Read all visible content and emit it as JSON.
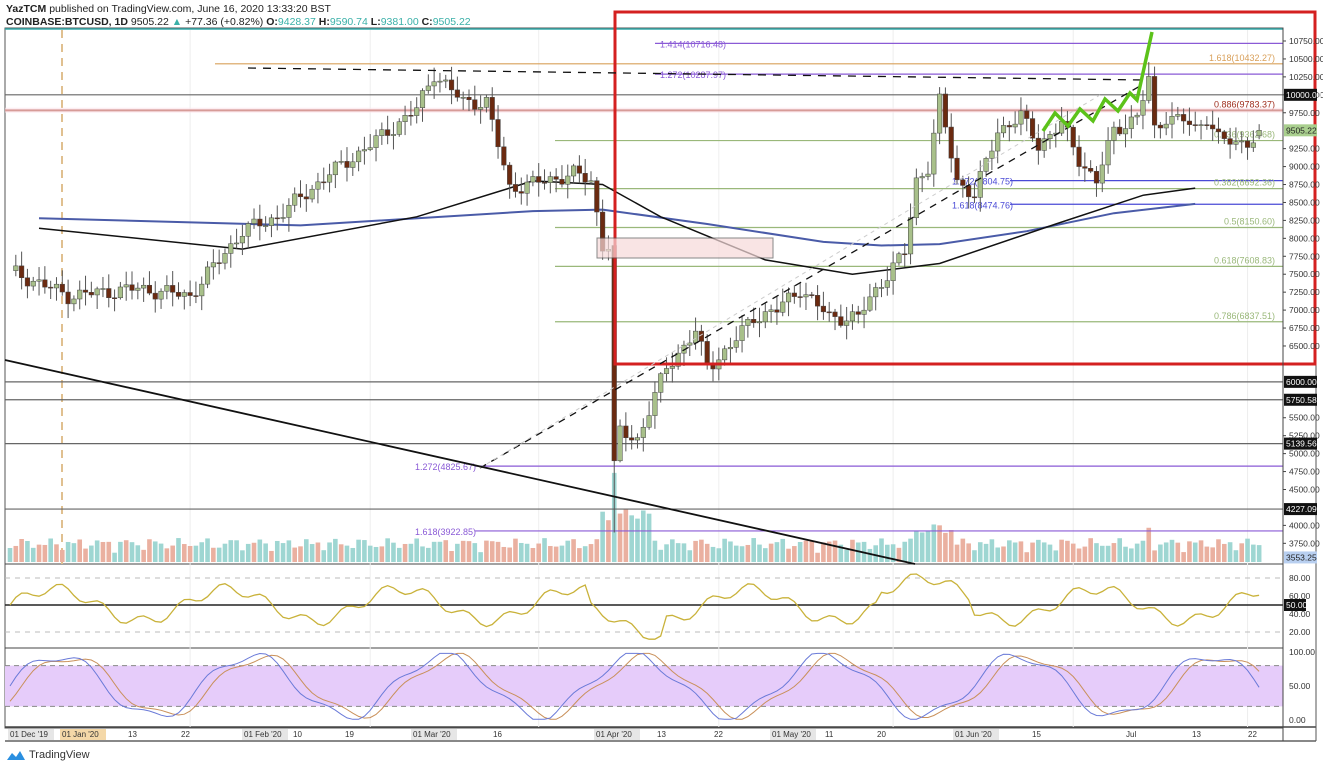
{
  "header": {
    "publisher": "YazTCM",
    "published_text": "published on TradingView.com, June 16, 2020 13:33:20 BST",
    "symbol": "COINBASE:BTCUSD, 1D",
    "last": "9505.22",
    "change": "+77.36 (+0.82%)",
    "open_label": "O:",
    "open": "9428.37",
    "high_label": "H:",
    "high": "9590.74",
    "low_label": "L:",
    "low": "9381.00",
    "close_label": "C:",
    "close": "9505.22"
  },
  "footer": {
    "brand": "TradingView"
  },
  "colors": {
    "up_candle": "#a8c08a",
    "down_candle": "#6b2a10",
    "frame_red": "#d42020",
    "fib_green": "#8aa86a",
    "fib_purple": "#8a6ad6",
    "fib_orange": "#d9a05a",
    "ma_blue": "#4a5ba8",
    "ma_black": "#111111",
    "rsi": "#c9b23a",
    "stoch_k": "#6a7ad8",
    "stoch_d": "#c9905a",
    "stoch_band": "#e6ccfa",
    "projection": "#5cc21a"
  },
  "chart_data": {
    "type": "candlestick",
    "title": "COINBASE:BTCUSD, 1D",
    "xlabel": "",
    "ylabel": "Price (USD)",
    "ylim": [
      3400,
      10950
    ],
    "price_ticks": [
      "10750.00",
      "10500.00",
      "10250.00",
      "10000.00",
      "9750.00",
      "9250.00",
      "9000.00",
      "8750.00",
      "8500.00",
      "8250.00",
      "8000.00",
      "7750.00",
      "7500.00",
      "7250.00",
      "7000.00",
      "6750.00",
      "6500.00",
      "5500.00",
      "5250.00",
      "5000.00",
      "4750.00",
      "4500.00",
      "4000.00",
      "3750.00"
    ],
    "highlighted_price_labels": [
      {
        "value": "10000.00",
        "style": "black"
      },
      {
        "value": "9505.22",
        "style": "green"
      },
      {
        "value": "6000.00",
        "style": "black"
      },
      {
        "value": "5750.58",
        "style": "black"
      },
      {
        "value": "5139.56",
        "style": "black"
      },
      {
        "value": "4227.09",
        "style": "black"
      },
      {
        "value": "3553.25",
        "style": "blue"
      }
    ],
    "time_ticks": [
      "01 Dec '19",
      "01 Jan '20",
      "13",
      "22",
      "01 Feb '20",
      "10",
      "19",
      "01 Mar '20",
      "16",
      "01 Apr '20",
      "13",
      "22",
      "01 May '20",
      "11",
      "20",
      "01 Jun '20",
      "15",
      "Jul",
      "13",
      "22"
    ],
    "fib_levels": [
      {
        "label": "1.414(10716.48)",
        "price": 10716.48,
        "color": "purple"
      },
      {
        "label": "1.618(10432.27)",
        "price": 10432.27,
        "color": "orange"
      },
      {
        "label": "1.272(10287.97)",
        "price": 10287.97,
        "color": "purple"
      },
      {
        "label": "0.886(9783.37)",
        "price": 9783.37,
        "color": "red"
      },
      {
        "label": "0.236(9362.68)",
        "price": 9362.68,
        "color": "green"
      },
      {
        "label": "1.272(8804.75)",
        "price": 8804.75,
        "color": "blue"
      },
      {
        "label": "0.382(8692.36)",
        "price": 8692.36,
        "color": "green"
      },
      {
        "label": "1.618(8474.76)",
        "price": 8474.76,
        "color": "blue"
      },
      {
        "label": "0.5(8150.60)",
        "price": 8150.6,
        "color": "green"
      },
      {
        "label": "0.618(7608.83)",
        "price": 7608.83,
        "color": "green"
      },
      {
        "label": "0.786(6837.51)",
        "price": 6837.51,
        "color": "green"
      },
      {
        "label": "1.272(4825.67)",
        "price": 4825.67,
        "color": "purple"
      },
      {
        "label": "1.618(3922.85)",
        "price": 3922.85,
        "color": "purple"
      }
    ],
    "horizontal_levels": [
      10000,
      6000,
      5750.58,
      5139.56,
      4227.09
    ],
    "last_price": 9505.22,
    "indicators": [
      {
        "name": "RSI",
        "ticks": [
          "80.00",
          "60.00",
          "50.00",
          "40.00",
          "20.00"
        ],
        "highlight": "50.00",
        "last": 50
      },
      {
        "name": "Stochastic RSI",
        "ticks": [
          "100.00",
          "50.00",
          "0.00"
        ],
        "band": [
          20,
          80
        ],
        "last": 20
      }
    ],
    "annotations": [
      "Red rectangle highlighting Apr-Jun range 6400-10950",
      "Rising dashed support trendline",
      "Descending resistance trendline",
      "Green zig-zag bullish projection to ~10900",
      "Pink box supply zone around 7800-8050"
    ]
  }
}
